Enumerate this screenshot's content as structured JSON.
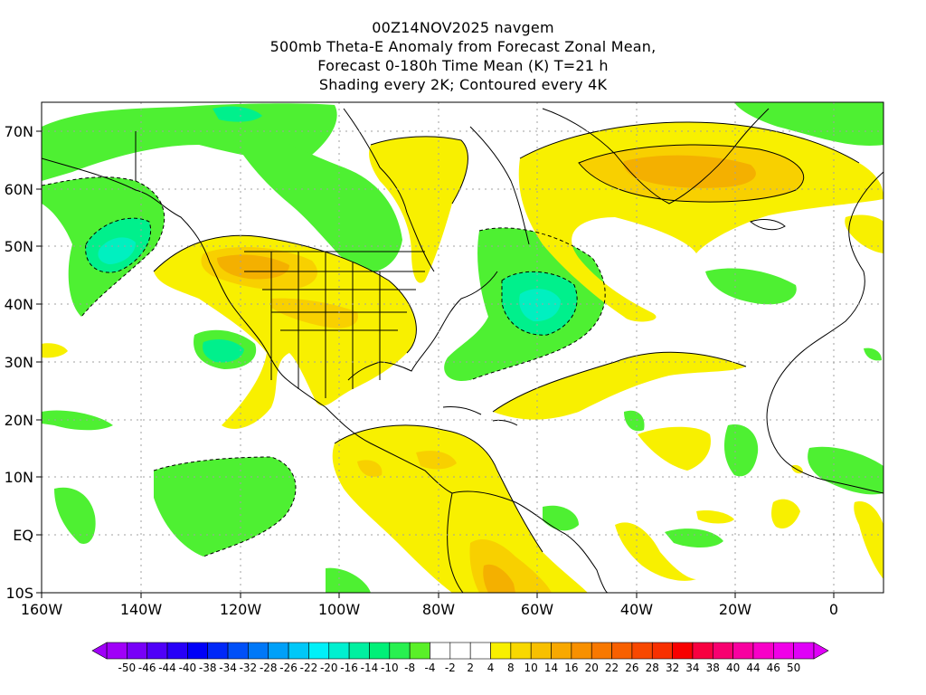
{
  "header": {
    "lines": [
      "00Z14NOV2025 navgem",
      "500mb Theta-E Anomaly from Forecast Zonal Mean,",
      "Forecast 0-180h Time Mean (K) T=21 h",
      "Shading every 2K; Contoured every 4K"
    ]
  },
  "map": {
    "region": "Americas and North Atlantic",
    "lon_ticks": [
      "160W",
      "140W",
      "120W",
      "100W",
      "80W",
      "60W",
      "40W",
      "20W",
      "0"
    ],
    "lat_ticks": [
      "70N",
      "60N",
      "50N",
      "40N",
      "30N",
      "20N",
      "10N",
      "EQ",
      "10S"
    ],
    "colors": {
      "pos_light": "#f8f000",
      "pos_mid": "#f8d000",
      "pos_strong": "#f4b000",
      "neg_light": "#4ef032",
      "neg_mid": "#00f08c",
      "neg_strong": "#00f0d0",
      "land_lines": "#000000",
      "grid": "#a0a0a0"
    }
  },
  "colorbar": {
    "labels": [
      "-50",
      "-46",
      "-44",
      "-40",
      "-38",
      "-34",
      "-32",
      "-28",
      "-26",
      "-22",
      "-20",
      "-16",
      "-14",
      "-10",
      "-8",
      "-4",
      "-2",
      "2",
      "4",
      "8",
      "10",
      "14",
      "16",
      "20",
      "22",
      "26",
      "28",
      "32",
      "34",
      "38",
      "40",
      "44",
      "46",
      "50"
    ],
    "colors": [
      "#a000f8",
      "#7800f8",
      "#5000f8",
      "#2800f8",
      "#0000f8",
      "#0028f8",
      "#0050f8",
      "#0078f8",
      "#00a0f8",
      "#00c8f8",
      "#00f0f8",
      "#00f0d0",
      "#00f0a0",
      "#00f078",
      "#28f050",
      "#5af028",
      "#ffffff",
      "#ffffff",
      "#ffffff",
      "#f8f000",
      "#f8d800",
      "#f8c000",
      "#f8a800",
      "#f89000",
      "#f87800",
      "#f86000",
      "#f84800",
      "#f83000",
      "#f80000",
      "#f80040",
      "#f80070",
      "#f800a0",
      "#f800c8",
      "#f000e8",
      "#e000f8"
    ]
  }
}
